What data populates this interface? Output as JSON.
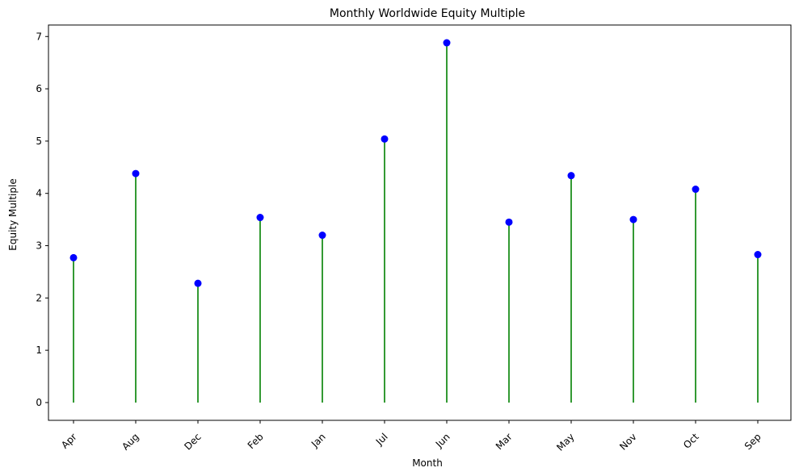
{
  "chart_data": {
    "type": "stem",
    "title": "Monthly Worldwide Equity Multiple",
    "xlabel": "Month",
    "ylabel": "Equity Multiple",
    "categories": [
      "Apr",
      "Aug",
      "Dec",
      "Feb",
      "Jan",
      "Jul",
      "Jun",
      "Mar",
      "May",
      "Nov",
      "Oct",
      "Sep"
    ],
    "values": [
      2.77,
      4.38,
      2.28,
      3.54,
      3.2,
      5.04,
      6.88,
      3.45,
      4.34,
      3.5,
      4.08,
      2.83
    ],
    "ylim": [
      -0.34,
      7.22
    ],
    "yticks": [
      "0",
      "1",
      "2",
      "3",
      "4",
      "5",
      "6",
      "7"
    ],
    "grid": false,
    "x_tick_rotation_deg": 45,
    "colors": {
      "stem": "#008000",
      "marker": "#0000ff",
      "axes": "#000000",
      "background": "#ffffff"
    }
  }
}
